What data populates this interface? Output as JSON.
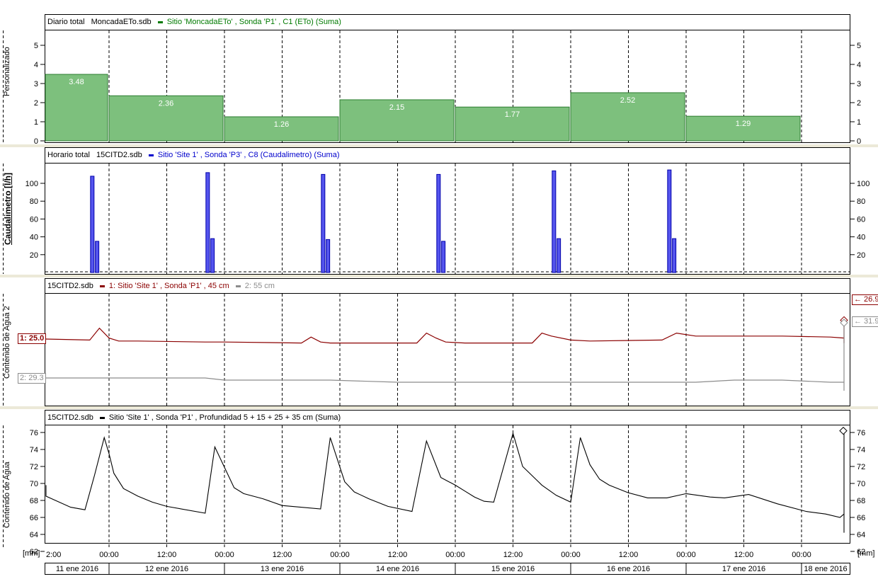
{
  "panels": {
    "p1": {
      "header_a": "Diario total",
      "header_file": "MoncadaETo.sdb",
      "legend": "Sitio  'MoncadaETo' , Sonda 'P1' , C1 (ETo) (Suma)",
      "legend_color": "#007a00",
      "ylabel": "Personalizado"
    },
    "p2": {
      "header_a": "Horario total",
      "header_file": "15CITD2.sdb",
      "legend": "Sitio  'Site 1' , Sonda 'P3' , C8 (Caudalimetro) (Suma)",
      "legend_color": "#0000cc",
      "ylabel": "Caudalimetro [l/h]"
    },
    "p3": {
      "header_file": "15CITD2.sdb",
      "legend1": "1: Sitio  'Site 1' , Sonda 'P1' , 45 cm",
      "legend1_color": "#8b0000",
      "legend2": "2: 55 cm",
      "legend2_color": "#8c8c8c",
      "ylabel": "Contenido de Agua 2",
      "marker1_left": "1: 25.0",
      "marker2_left": "2: 29.3",
      "marker1_right": "← 26.9",
      "marker2_right": "← 31.9"
    },
    "p4": {
      "header_file": "15CITD2.sdb",
      "legend": "Sitio  'Site 1' , Sonda 'P1' , Profundidad 5 + 15 + 25 + 35 cm (Suma)",
      "legend_color": "#000000",
      "ylabel": "Contenido de Agua"
    }
  },
  "axis": {
    "unit_left": "[mm]",
    "unit_right": "[mm]",
    "time_ticks": [
      "2:00",
      "00:00",
      "12:00",
      "00:00",
      "12:00",
      "00:00",
      "12:00",
      "00:00",
      "12:00",
      "00:00",
      "12:00",
      "00:00",
      "12:00",
      "00:00"
    ],
    "days": [
      "11 ene 2016",
      "12 ene 2016",
      "13 ene 2016",
      "14 ene 2016",
      "15 ene 2016",
      "16 ene 2016",
      "17 ene 2016",
      "18 ene 2016"
    ]
  },
  "chart_data": [
    {
      "type": "bar",
      "title": "Diario total",
      "ylabel": "Personalizado",
      "categories": [
        "11 ene 2016",
        "12 ene 2016",
        "13 ene 2016",
        "14 ene 2016",
        "15 ene 2016",
        "16 ene 2016",
        "17 ene 2016"
      ],
      "values": [
        3.48,
        2.36,
        1.26,
        2.15,
        1.77,
        2.52,
        1.29
      ],
      "value_labels": [
        "3.48",
        "2.36",
        "1.26",
        "2.15",
        "1.77",
        "2.52",
        "1.29"
      ],
      "ylim": [
        0,
        6
      ],
      "yticks": [
        0,
        1,
        2,
        3,
        4,
        5
      ],
      "color": "#7dc07d",
      "grid": "dashed vertical"
    },
    {
      "type": "bar",
      "title": "Horario total",
      "ylabel": "Caudalimetro [l/h]",
      "x_hours": [
        -4,
        -3,
        20,
        21,
        44,
        45,
        68,
        69,
        92,
        93,
        116,
        117,
        182,
        183
      ],
      "values": [
        108,
        35,
        112,
        38,
        110,
        37,
        110,
        35,
        114,
        38,
        115,
        38,
        112,
        37
      ],
      "ylim": [
        0,
        125
      ],
      "yticks": [
        20,
        40,
        60,
        80,
        100
      ],
      "color": "#5555ee"
    },
    {
      "type": "line",
      "title": "Contenido de Agua 2",
      "ylabel": "Contenido de Agua 2",
      "x_hours": [
        -24,
        -20,
        -4,
        -2,
        0,
        2,
        6,
        20,
        24,
        40,
        42,
        44,
        46,
        60,
        64,
        66,
        68,
        70,
        74,
        88,
        90,
        92,
        96,
        100,
        115,
        118,
        122,
        130,
        140,
        150,
        160,
        165,
        170,
        180,
        182,
        183
      ],
      "series": [
        {
          "name": "1: Sitio  'Site 1' , Sonda 'P1' , 45 cm",
          "color": "#8b0000",
          "values": [
            25.0,
            25.0,
            24.9,
            26.1,
            25.1,
            24.8,
            24.8,
            24.7,
            24.7,
            24.6,
            25.2,
            24.7,
            24.6,
            24.6,
            24.6,
            25.6,
            25.1,
            24.7,
            24.6,
            24.6,
            25.6,
            25.3,
            24.9,
            24.8,
            24.9,
            25.6,
            25.3,
            25.3,
            25.3,
            25.2,
            25.1,
            25.0,
            24.8,
            24.6,
            24.7,
            26.9
          ]
        },
        {
          "name": "2: 55 cm",
          "color": "#8c8c8c",
          "values": [
            29.3,
            29.3,
            29.3,
            29.3,
            29.3,
            29.3,
            29.3,
            29.3,
            29.2,
            29.2,
            29.2,
            29.2,
            29.2,
            29.1,
            29.1,
            29.1,
            29.1,
            29.1,
            29.1,
            29.1,
            29.1,
            29.1,
            29.1,
            29.1,
            29.1,
            29.1,
            29.1,
            29.2,
            29.2,
            29.1,
            29.1,
            28.9,
            28.8,
            28.7,
            28.7,
            31.9
          ]
        }
      ]
    },
    {
      "type": "line",
      "title": "Contenido de Agua",
      "ylabel": "Contenido de Agua",
      "x_hours": [
        -24,
        -22,
        -8,
        -5,
        -3,
        -1,
        0,
        1,
        3,
        6,
        9,
        12,
        20,
        22,
        26,
        28,
        32,
        36,
        44,
        46,
        49,
        51,
        54,
        58,
        63,
        66,
        69,
        72,
        74,
        76,
        78,
        80,
        84,
        86,
        90,
        93,
        96,
        98,
        100,
        102,
        104,
        108,
        112,
        116,
        120,
        125,
        128,
        133,
        139,
        145,
        149,
        152,
        157,
        162,
        166,
        171,
        176,
        180,
        182,
        183
      ],
      "series": [
        {
          "name": "Sitio  'Site 1' , Sonda 'P1' , Profundidad 5 + 15 + 25 + 35 cm (Suma)",
          "color": "#000000",
          "values": [
            69.8,
            68.5,
            67.2,
            66.9,
            71.0,
            75.4,
            73.5,
            71.2,
            69.4,
            68.5,
            67.8,
            67.3,
            66.5,
            74.3,
            69.5,
            68.8,
            68.2,
            67.4,
            67.0,
            75.4,
            70.2,
            69.0,
            68.2,
            67.3,
            66.7,
            75.0,
            70.7,
            69.8,
            69.1,
            68.4,
            67.9,
            67.8,
            75.9,
            72.0,
            69.8,
            68.6,
            67.8,
            75.4,
            72.2,
            70.5,
            69.8,
            68.9,
            68.3,
            68.3,
            68.8,
            68.4,
            68.3,
            68.7,
            67.6,
            66.7,
            66.4,
            66.0,
            66.4,
            66.2,
            65.0,
            64.4,
            64.2,
            65.8,
            64.8,
            76.2
          ]
        }
      ],
      "ylim": [
        61,
        77
      ],
      "yticks": [
        62,
        64,
        66,
        68,
        70,
        72,
        74,
        76
      ]
    }
  ]
}
